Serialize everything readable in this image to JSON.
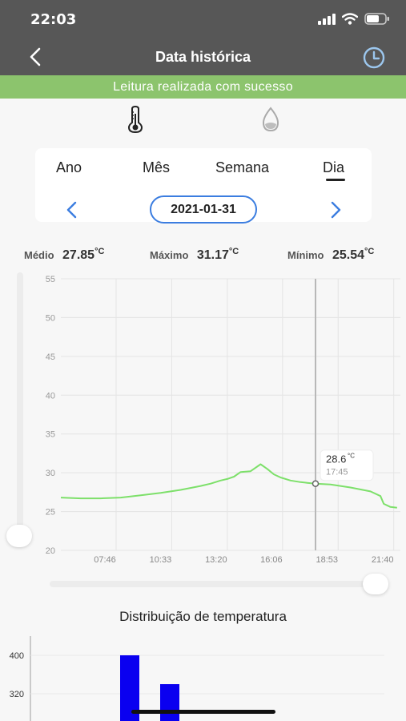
{
  "status_bar": {
    "time": "22:03",
    "icons": [
      "signal-icon",
      "wifi-icon",
      "battery-icon"
    ]
  },
  "nav": {
    "title": "Data histórica",
    "back_icon": "chevron-left-icon",
    "history_icon": "clock-icon"
  },
  "banner": {
    "text": "Leitura realizada com sucesso",
    "color": "#8cc46d"
  },
  "sensors": {
    "active": "temperature",
    "items": [
      "thermometer-icon",
      "humidity-drop-icon"
    ]
  },
  "period_tabs": {
    "items": [
      "Ano",
      "Mês",
      "Semana",
      "Dia"
    ],
    "selected": "Dia"
  },
  "date_nav": {
    "date": "2021-01-31",
    "prev_icon": "chevron-left-icon",
    "next_icon": "chevron-right-icon"
  },
  "stats": {
    "medio_label": "Médio",
    "medio_value": "27.85",
    "medio_unit": "°C",
    "maximo_label": "Máximo",
    "maximo_value": "31.17",
    "maximo_unit": "°C",
    "minimo_label": "Mínimo",
    "minimo_value": "25.54",
    "minimo_unit": "°C"
  },
  "chart_data": {
    "type": "line",
    "ylim": [
      20,
      55
    ],
    "y_ticks": [
      "55",
      "50",
      "45",
      "40",
      "35",
      "30",
      "25",
      "20"
    ],
    "x_ticks": [
      "07:46",
      "10:33",
      "13:20",
      "16:06",
      "18:53",
      "21:40"
    ],
    "xlim": [
      "05:00",
      "22:00"
    ],
    "series": [
      {
        "color": "#7de06a",
        "x": [
          "05:00",
          "06:00",
          "07:00",
          "08:00",
          "09:00",
          "10:00",
          "11:00",
          "12:00",
          "12:30",
          "13:00",
          "13:20",
          "13:40",
          "14:00",
          "14:30",
          "15:00",
          "15:20",
          "15:40",
          "16:00",
          "16:30",
          "17:00",
          "17:20",
          "17:45",
          "18:30",
          "19:30",
          "20:30",
          "21:00",
          "21:10",
          "21:30",
          "21:50"
        ],
        "y": [
          26.8,
          26.7,
          26.7,
          26.8,
          27.1,
          27.4,
          27.8,
          28.3,
          28.6,
          29.0,
          29.2,
          29.5,
          30.1,
          30.2,
          31.1,
          30.5,
          29.8,
          29.4,
          29.0,
          28.8,
          28.7,
          28.6,
          28.5,
          28.1,
          27.6,
          27.0,
          26.0,
          25.6,
          25.5
        ]
      }
    ],
    "tooltip": {
      "x": "17:45",
      "value": "28.6",
      "unit": "°C",
      "time": "17:45"
    },
    "grid": true
  },
  "distribution": {
    "title": "Distribuição de temperatura",
    "y_ticks": [
      "400",
      "320"
    ],
    "bar_values": [
      400,
      340
    ],
    "bar_color": "#0a00f0"
  }
}
